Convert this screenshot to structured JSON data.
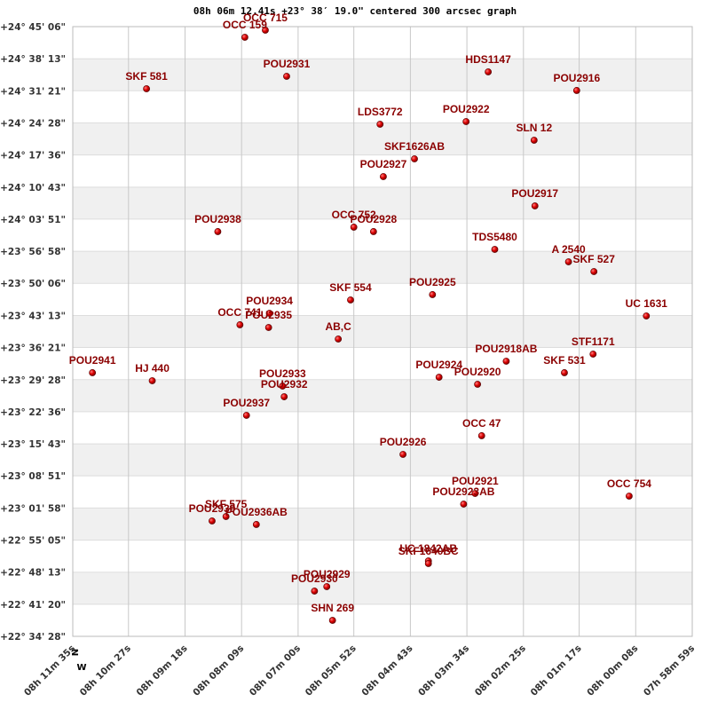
{
  "chart_data": {
    "type": "scatter",
    "title": "08h 06m 12.41s +23° 38′ 19.0\" centered 300 arcsec graph",
    "north_label": "N",
    "west_label": "W",
    "color": "#cc0000",
    "label_color": "#8b0000",
    "point_labels": [
      "OCC 715",
      "OCC 159",
      "POU2931",
      "SKF 581",
      "HDS1147",
      "POU2916",
      "LDS3772",
      "POU2922",
      "SLN  12",
      "SKF1626AB",
      "POU2927",
      "POU2917",
      "POU2938",
      "OCC 752",
      "POU2928",
      "TDS5480",
      "A  2540",
      "SKF 527",
      "POU2925",
      "SKF 554",
      "POU2934",
      "OCC 741",
      "POU2935",
      "UC 1631",
      "AB,C",
      "POU2918AB",
      "STF1171",
      "POU2941",
      "SKF 531",
      "HJ  440",
      "POU2924",
      "POU2920",
      "POU2933",
      "POU2932",
      "POU2937",
      "OCC  47",
      "POU2926",
      "POU2921",
      "POU2923AB",
      "OCC 754",
      "POU2939",
      "SKF 575",
      "POU2936AB",
      "UC 1842AB",
      "SKF1640BC",
      "POU2929",
      "POU2930",
      "SHN 269"
    ],
    "x": [
      29260,
      29285,
      29234,
      29405,
      28988,
      28880,
      29120,
      29015,
      28932,
      29078,
      29116,
      28931,
      29318,
      29152,
      29128,
      28980,
      28890,
      28859,
      29056,
      29156,
      29255,
      29291,
      29256,
      28795,
      29171,
      28966,
      28860,
      29471,
      28895,
      29398,
      29048,
      29001,
      29239,
      29237,
      29283,
      28996,
      29092,
      29004,
      29018,
      28816,
      29325,
      29308,
      29271,
      29061,
      29061,
      29185,
      29200,
      29178
    ],
    "values": [
      89060,
      88969,
      88467,
      88307,
      88524,
      88285,
      87851,
      87885,
      87646,
      87406,
      87178,
      86801,
      86471,
      86528,
      86471,
      86242,
      86083,
      85957,
      85661,
      85592,
      85421,
      85273,
      85238,
      85387,
      85090,
      84805,
      84896,
      84657,
      84657,
      84554,
      84599,
      84508,
      84485,
      84348,
      84109,
      83847,
      83607,
      83105,
      82968,
      83071,
      82751,
      82808,
      82706,
      82238,
      82204,
      81907,
      81850,
      81473
    ],
    "xlim": [
      29495,
      28739
    ],
    "xticks": [
      {
        "value": 29495,
        "label": "08h 11m 35s"
      },
      {
        "value": 29427,
        "label": "08h 10m 27s"
      },
      {
        "value": 29358,
        "label": "08h 09m 18s"
      },
      {
        "value": 29289,
        "label": "08h 08m 09s"
      },
      {
        "value": 29220,
        "label": "08h 07m 00s"
      },
      {
        "value": 29152,
        "label": "08h 05m 52s"
      },
      {
        "value": 29083,
        "label": "08h 04m 43s"
      },
      {
        "value": 29014,
        "label": "08h 03m 34s"
      },
      {
        "value": 28945,
        "label": "08h 02m 25s"
      },
      {
        "value": 28877,
        "label": "08h 01m 17s"
      },
      {
        "value": 28808,
        "label": "08h 00m 08s"
      },
      {
        "value": 28739,
        "label": "07h 58m 59s"
      }
    ],
    "ylim": [
      81268,
      89106
    ],
    "yticks": [
      {
        "value": 89106,
        "label": "+24° 45' 06\""
      },
      {
        "value": 88693,
        "label": "+24° 38' 13\""
      },
      {
        "value": 88281,
        "label": "+24° 31' 21\""
      },
      {
        "value": 87868,
        "label": "+24° 24' 28\""
      },
      {
        "value": 87456,
        "label": "+24° 17' 36\""
      },
      {
        "value": 87043,
        "label": "+24° 10' 43\""
      },
      {
        "value": 86631,
        "label": "+24° 03' 51\""
      },
      {
        "value": 86218,
        "label": "+23° 56' 58\""
      },
      {
        "value": 85806,
        "label": "+23° 50' 06\""
      },
      {
        "value": 85393,
        "label": "+23° 43' 13\""
      },
      {
        "value": 84981,
        "label": "+23° 36' 21\""
      },
      {
        "value": 84568,
        "label": "+23° 29' 28\""
      },
      {
        "value": 84156,
        "label": "+23° 22' 36\""
      },
      {
        "value": 83743,
        "label": "+23° 15' 43\""
      },
      {
        "value": 83331,
        "label": "+23° 08' 51\""
      },
      {
        "value": 82918,
        "label": "+23° 01' 58\""
      },
      {
        "value": 82505,
        "label": "+22° 55' 05\""
      },
      {
        "value": 82093,
        "label": "+22° 48' 13\""
      },
      {
        "value": 81680,
        "label": "+22° 41' 20\""
      },
      {
        "value": 81268,
        "label": "+22° 34' 28\""
      }
    ],
    "grid": true,
    "banded": true
  }
}
